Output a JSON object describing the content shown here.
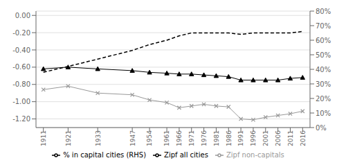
{
  "chart_data": {
    "type": "line",
    "x": [
      1911,
      1921,
      1933,
      1947,
      1954,
      1961,
      1966,
      1971,
      1976,
      1981,
      1986,
      1991,
      1996,
      2001,
      2006,
      2011,
      2016
    ],
    "xlim": [
      1908,
      2019
    ],
    "xticks": [
      1911,
      1921,
      1933,
      1947,
      1954,
      1961,
      1966,
      1971,
      1976,
      1981,
      1986,
      1991,
      1996,
      2001,
      2006,
      2011,
      2016
    ],
    "ylim": [
      -1.3,
      0.05
    ],
    "yticks": [
      {
        "value": 0.0,
        "label": "0.00"
      },
      {
        "value": -0.2,
        "label": "-0.20"
      },
      {
        "value": -0.4,
        "label": "-0.40"
      },
      {
        "value": -0.6,
        "label": "-0.60"
      },
      {
        "value": -0.8,
        "label": "-0.80"
      },
      {
        "value": -1.0,
        "label": "-1.00"
      },
      {
        "value": -1.2,
        "label": "-1.20"
      }
    ],
    "y2lim": [
      0.0,
      0.8
    ],
    "y2ticks": [
      {
        "value": 0.0,
        "label": "0%"
      },
      {
        "value": 0.1,
        "label": "10%"
      },
      {
        "value": 0.2,
        "label": "20%"
      },
      {
        "value": 0.3,
        "label": "30%"
      },
      {
        "value": 0.4,
        "label": "40%"
      },
      {
        "value": 0.5,
        "label": "50%"
      },
      {
        "value": 0.6,
        "label": "60%"
      },
      {
        "value": 0.7,
        "label": "70%"
      },
      {
        "value": 0.8,
        "label": "80%"
      }
    ],
    "grid": true,
    "legend": "bottom",
    "series": [
      {
        "name": "Zipf all cities",
        "color": "#000000",
        "marker": "triangle",
        "line_style": "solid",
        "values": [
          -0.62,
          -0.6,
          -0.62,
          -0.64,
          -0.66,
          -0.67,
          -0.68,
          -0.68,
          -0.69,
          -0.7,
          -0.71,
          -0.75,
          -0.75,
          -0.75,
          -0.75,
          -0.73,
          -0.72
        ]
      },
      {
        "name": "Zipf non-capitals",
        "color": "#999999",
        "marker": "x",
        "line_style": "solid",
        "values": [
          -0.86,
          -0.82,
          -0.9,
          -0.92,
          -0.98,
          -1.01,
          -1.07,
          -1.05,
          -1.03,
          -1.05,
          -1.06,
          -1.2,
          -1.21,
          -1.18,
          -1.16,
          -1.14,
          -1.11
        ]
      },
      {
        "name": "% in capital cities (RHS)",
        "color": "#000000",
        "axis": "y2",
        "marker": "none",
        "line_style": "dashed",
        "values": [
          0.38,
          0.42,
          0.47,
          0.53,
          0.57,
          0.6,
          0.63,
          0.65,
          0.65,
          0.65,
          0.65,
          0.64,
          0.65,
          0.65,
          0.65,
          0.65,
          0.66
        ]
      }
    ]
  }
}
